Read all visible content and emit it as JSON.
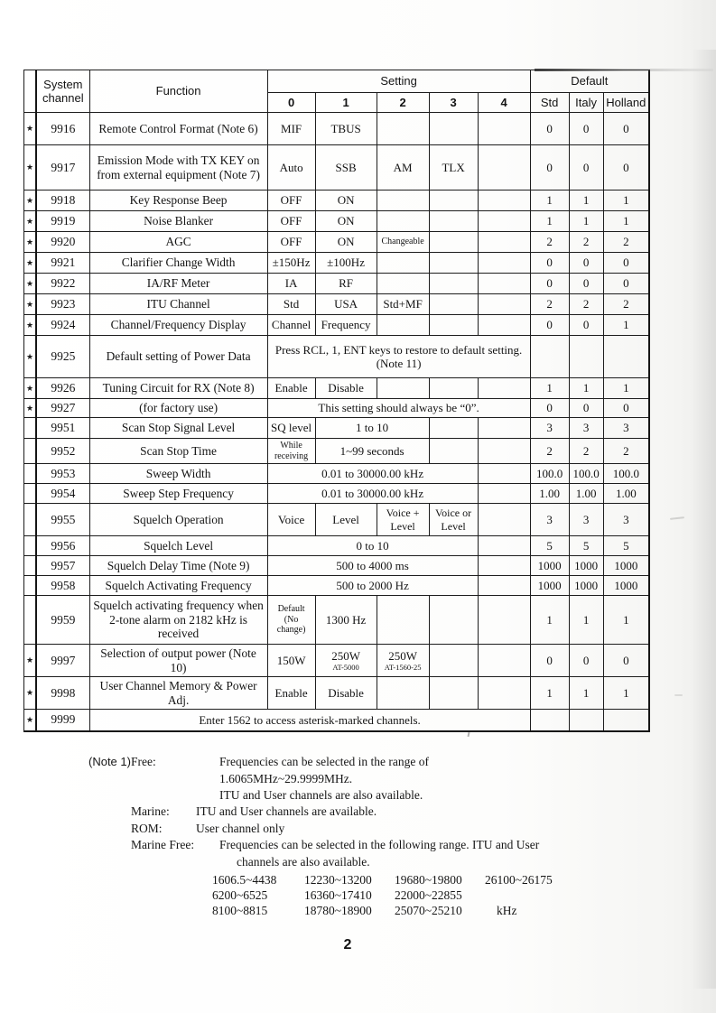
{
  "page": {
    "number": "2"
  },
  "table": {
    "star_glyph": "★",
    "header": {
      "system_channel": "System\nchannel",
      "function": "Function",
      "setting": "Setting",
      "default": "Default",
      "setting_cols": [
        "0",
        "1",
        "2",
        "3",
        "4"
      ],
      "default_cols": [
        "Std",
        "Italy",
        "Holland"
      ]
    },
    "rows": [
      {
        "star": true,
        "channel": "9916",
        "function": "Remote Control Format (Note 6)",
        "settings": [
          {
            "t": "MIF"
          },
          {
            "t": "TBUS"
          },
          {},
          {},
          {}
        ],
        "defaults": [
          "0",
          "0",
          "0"
        ]
      },
      {
        "star": true,
        "channel": "9917",
        "function": "Emission Mode with TX KEY on from external equipment (Note 7)",
        "settings": [
          {
            "t": "Auto"
          },
          {
            "t": "SSB"
          },
          {
            "t": "AM"
          },
          {
            "t": "TLX"
          },
          {}
        ],
        "defaults": [
          "0",
          "0",
          "0"
        ]
      },
      {
        "star": true,
        "channel": "9918",
        "function": "Key Response Beep",
        "settings": [
          {
            "t": "OFF"
          },
          {
            "t": "ON"
          },
          {},
          {},
          {}
        ],
        "defaults": [
          "1",
          "1",
          "1"
        ]
      },
      {
        "star": true,
        "channel": "9919",
        "function": "Noise Blanker",
        "settings": [
          {
            "t": "OFF"
          },
          {
            "t": "ON"
          },
          {},
          {},
          {}
        ],
        "defaults": [
          "1",
          "1",
          "1"
        ]
      },
      {
        "star": true,
        "channel": "9920",
        "function": "AGC",
        "settings": [
          {
            "t": "OFF"
          },
          {
            "t": "ON"
          },
          {
            "t": "Changeable",
            "small": true
          },
          {},
          {}
        ],
        "defaults": [
          "2",
          "2",
          "2"
        ]
      },
      {
        "star": true,
        "channel": "9921",
        "function": "Clarifier Change Width",
        "settings": [
          {
            "t": "±150Hz"
          },
          {
            "t": "±100Hz"
          },
          {},
          {},
          {}
        ],
        "defaults": [
          "0",
          "0",
          "0"
        ]
      },
      {
        "star": true,
        "channel": "9922",
        "function": "IA/RF Meter",
        "settings": [
          {
            "t": "IA"
          },
          {
            "t": "RF"
          },
          {},
          {},
          {}
        ],
        "defaults": [
          "0",
          "0",
          "0"
        ]
      },
      {
        "star": true,
        "channel": "9923",
        "function": "ITU Channel",
        "settings": [
          {
            "t": "Std"
          },
          {
            "t": "USA"
          },
          {
            "t": "Std+MF"
          },
          {},
          {}
        ],
        "defaults": [
          "2",
          "2",
          "2"
        ]
      },
      {
        "star": true,
        "channel": "9924",
        "function": "Channel/Frequency Display",
        "settings": [
          {
            "t": "Channel"
          },
          {
            "t": "Frequency"
          },
          {},
          {},
          {}
        ],
        "defaults": [
          "0",
          "0",
          "1"
        ]
      },
      {
        "star": true,
        "channel": "9925",
        "function": "Default setting of Power Data",
        "settings": [
          {
            "t": "Press RCL, 1, ENT keys to restore to default setting. (Note 11)",
            "span": 5,
            "left": true
          }
        ],
        "defaults": [
          "",
          "",
          ""
        ]
      },
      {
        "star": true,
        "channel": "9926",
        "function": "Tuning Circuit for RX (Note 8)",
        "settings": [
          {
            "t": "Enable"
          },
          {
            "t": "Disable"
          },
          {},
          {},
          {}
        ],
        "defaults": [
          "1",
          "1",
          "1"
        ]
      },
      {
        "star": true,
        "channel": "9927",
        "function": "(for factory use)",
        "settings": [
          {
            "t": "This setting should always be “0”.",
            "span": 5
          }
        ],
        "defaults": [
          "0",
          "0",
          "0"
        ]
      },
      {
        "star": false,
        "channel": "9951",
        "function": "Scan Stop Signal Level",
        "settings": [
          {
            "t": "SQ level"
          },
          {
            "t": "1 to 10",
            "span": 2
          },
          {},
          {}
        ],
        "defaults": [
          "3",
          "3",
          "3"
        ]
      },
      {
        "star": false,
        "channel": "9952",
        "function": "Scan Stop Time",
        "settings": [
          {
            "t": "While receiving",
            "small": true
          },
          {
            "t": "1~99 seconds",
            "span": 2
          },
          {},
          {}
        ],
        "defaults": [
          "2",
          "2",
          "2"
        ]
      },
      {
        "star": false,
        "channel": "9953",
        "function": "Sweep Width",
        "settings": [
          {
            "t": "0.01 to 30000.00 kHz",
            "span": 4
          },
          {}
        ],
        "defaults": [
          "100.0",
          "100.0",
          "100.0"
        ]
      },
      {
        "star": false,
        "channel": "9954",
        "function": "Sweep Step Frequency",
        "settings": [
          {
            "t": "0.01 to 30000.00 kHz",
            "span": 4
          },
          {}
        ],
        "defaults": [
          "1.00",
          "1.00",
          "1.00"
        ]
      },
      {
        "star": false,
        "channel": "9955",
        "function": "Squelch Operation",
        "settings": [
          {
            "t": "Voice"
          },
          {
            "t": "Level"
          },
          {
            "t": "Voice + Level",
            "tight": true
          },
          {
            "t": "Voice or Level",
            "tight": true
          },
          {}
        ],
        "defaults": [
          "3",
          "3",
          "3"
        ]
      },
      {
        "star": false,
        "channel": "9956",
        "function": "Squelch Level",
        "settings": [
          {
            "t": "0 to 10",
            "span": 4
          },
          {}
        ],
        "defaults": [
          "5",
          "5",
          "5"
        ]
      },
      {
        "star": false,
        "channel": "9957",
        "function": "Squelch Delay Time (Note 9)",
        "settings": [
          {
            "t": "500 to 4000 ms",
            "span": 4
          },
          {}
        ],
        "defaults": [
          "1000",
          "1000",
          "1000"
        ]
      },
      {
        "star": false,
        "channel": "9958",
        "function": "Squelch Activating Frequency",
        "settings": [
          {
            "t": "500 to 2000 Hz",
            "span": 4
          },
          {}
        ],
        "defaults": [
          "1000",
          "1000",
          "1000"
        ]
      },
      {
        "star": false,
        "channel": "9959",
        "function": "Squelch activating frequency when 2-tone alarm on 2182 kHz is received",
        "settings": [
          {
            "t": "Default (No change)",
            "small": true
          },
          {
            "t": "1300 Hz"
          },
          {},
          {},
          {}
        ],
        "defaults": [
          "1",
          "1",
          "1"
        ]
      },
      {
        "star": true,
        "channel": "9997",
        "function": "Selection of output power (Note 10)",
        "settings": [
          {
            "t": "150W"
          },
          {
            "t": "250W",
            "sub": "AT-5000"
          },
          {
            "t": "250W",
            "sub": "AT-1560-25"
          },
          {},
          {}
        ],
        "defaults": [
          "0",
          "0",
          "0"
        ]
      },
      {
        "star": true,
        "channel": "9998",
        "function": "User Channel Memory & Power Adj.",
        "settings": [
          {
            "t": "Enable"
          },
          {
            "t": "Disable"
          },
          {},
          {},
          {}
        ],
        "defaults": [
          "1",
          "1",
          "1"
        ]
      },
      {
        "star": true,
        "channel": "9999",
        "function": null,
        "settings": [
          {
            "t": "Enter 1562 to access asterisk-marked channels.",
            "span": 6
          }
        ],
        "defaults": [
          "",
          "",
          ""
        ]
      }
    ]
  },
  "notes": {
    "note_label": "(Note 1)",
    "free_term": "Free:",
    "free_line1": "Frequencies can be selected in the range of",
    "free_line2": "1.6065MHz~29.9999MHz.",
    "free_line3": "ITU and User channels are also available.",
    "marine_term": "Marine:",
    "marine_line": "ITU and User channels are available.",
    "rom_term": "ROM:",
    "rom_line": "User channel only",
    "marine_free_term": "Marine Free:",
    "marine_free_line1": "Frequencies can be selected in the following range. ITU and User",
    "marine_free_line2": "channels are also available.",
    "unit": "kHz"
  },
  "freq": {
    "rows": [
      [
        "1606.5~4438",
        "12230~13200",
        "19680~19800",
        "26100~26175"
      ],
      [
        "6200~6525",
        "16360~17410",
        "22000~22855"
      ],
      [
        "8100~8815",
        "18780~18900",
        "25070~25210"
      ]
    ]
  }
}
